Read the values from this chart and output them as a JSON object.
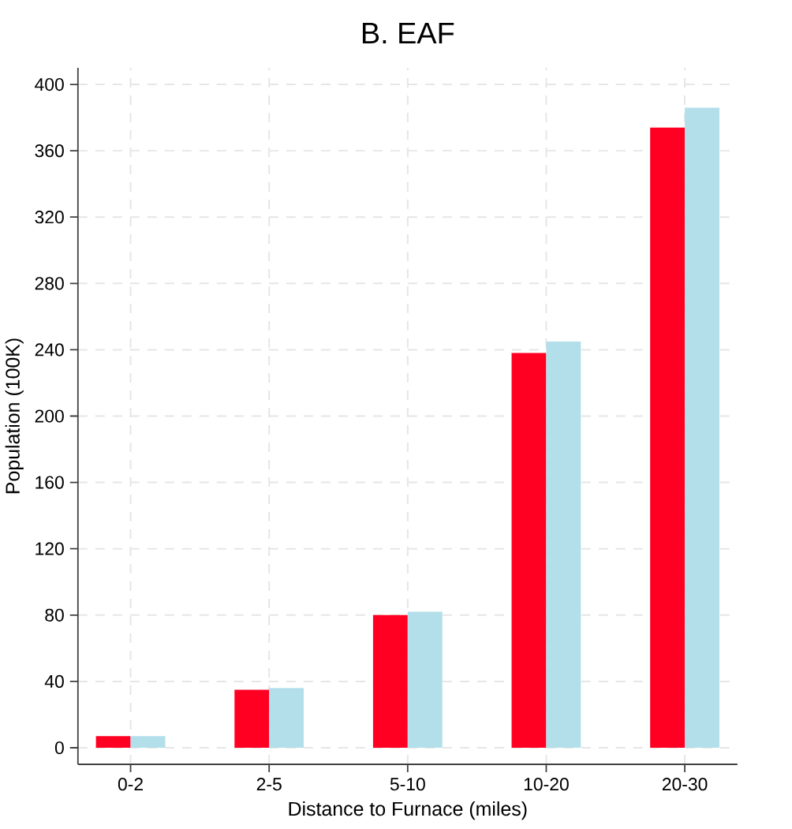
{
  "chart_data": {
    "type": "bar",
    "title": "B. EAF",
    "xlabel": "Distance to Furnace (miles)",
    "ylabel": "Population (100K)",
    "categories": [
      "0-2",
      "2-5",
      "5-10",
      "10-20",
      "20-30"
    ],
    "series": [
      {
        "color": "#ff0022",
        "values": [
          7,
          35,
          80,
          238,
          374
        ]
      },
      {
        "color": "#b3dfea",
        "values": [
          7,
          36,
          82,
          245,
          386
        ]
      }
    ],
    "ylim": [
      -10,
      410
    ],
    "yticks": [
      0,
      40,
      80,
      120,
      160,
      200,
      240,
      280,
      320,
      360,
      400
    ],
    "grid": true
  }
}
